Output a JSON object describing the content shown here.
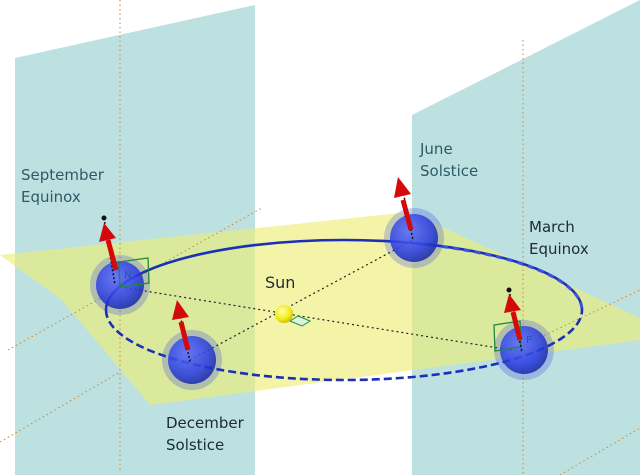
{
  "labels": {
    "sun": "Sun",
    "september_line1": "September",
    "september_line2": "Equinox",
    "june_line1": "June",
    "june_line2": "Solstice",
    "march_line1": "March",
    "march_line2": "Equinox",
    "december_line1": "December",
    "december_line2": "Solstice"
  },
  "earth_markers": {
    "september": "N",
    "march": "P"
  },
  "colors": {
    "orbit": "#1c2fb5",
    "earth": "#2a3ee0",
    "axis_arrow": "#d40a0a",
    "sun": "#f2ee1a",
    "ecliptic_plane": "#eeee72",
    "side_planes": "#86c8c8",
    "guide_lines": "#c9863a",
    "marker_square": "#1e8a3c"
  }
}
